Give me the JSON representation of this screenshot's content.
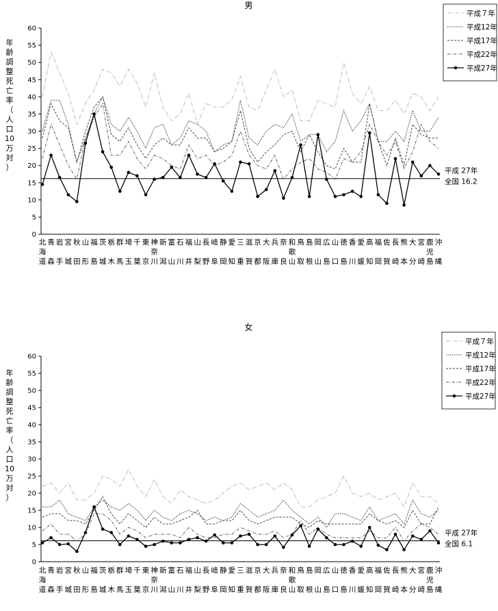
{
  "chart_data": [
    {
      "type": "line",
      "title": "男",
      "ylabel": "年齢調整死亡率（人口10万対）",
      "ylim": [
        0,
        60
      ],
      "yticks": [
        0,
        5,
        10,
        15,
        20,
        25,
        30,
        35,
        40,
        45,
        50,
        55,
        60
      ],
      "categories": [
        [
          "北",
          "海",
          "道"
        ],
        [
          "青",
          "",
          "森"
        ],
        [
          "岩",
          "",
          "手"
        ],
        [
          "宮",
          "",
          "城"
        ],
        [
          "秋",
          "",
          "田"
        ],
        [
          "山",
          "",
          "形"
        ],
        [
          "福",
          "",
          "島"
        ],
        [
          "茨",
          "",
          "城"
        ],
        [
          "栃",
          "",
          "木"
        ],
        [
          "群",
          "",
          "馬"
        ],
        [
          "埼",
          "",
          "玉"
        ],
        [
          "千",
          "",
          "葉"
        ],
        [
          "東",
          "",
          "京"
        ],
        [
          "神",
          "奈",
          "川"
        ],
        [
          "新",
          "",
          "潟"
        ],
        [
          "富",
          "",
          "山"
        ],
        [
          "石",
          "",
          "川"
        ],
        [
          "福",
          "",
          "井"
        ],
        [
          "山",
          "",
          "梨"
        ],
        [
          "長",
          "",
          "野"
        ],
        [
          "岐",
          "",
          "阜"
        ],
        [
          "静",
          "",
          "岡"
        ],
        [
          "愛",
          "",
          "知"
        ],
        [
          "三",
          "",
          "重"
        ],
        [
          "滋",
          "",
          "賀"
        ],
        [
          "京",
          "",
          "都"
        ],
        [
          "大",
          "",
          "阪"
        ],
        [
          "兵",
          "",
          "庫"
        ],
        [
          "奈",
          "",
          "良"
        ],
        [
          "和",
          "歌",
          "山"
        ],
        [
          "鳥",
          "",
          "取"
        ],
        [
          "島",
          "",
          "根"
        ],
        [
          "岡",
          "",
          "山"
        ],
        [
          "広",
          "",
          "島"
        ],
        [
          "山",
          "",
          "口"
        ],
        [
          "徳",
          "",
          "島"
        ],
        [
          "香",
          "",
          "川"
        ],
        [
          "愛",
          "",
          "媛"
        ],
        [
          "高",
          "",
          "知"
        ],
        [
          "福",
          "",
          "岡"
        ],
        [
          "佐",
          "",
          "賀"
        ],
        [
          "長",
          "",
          "崎"
        ],
        [
          "熊",
          "",
          "本"
        ],
        [
          "大",
          "",
          "分"
        ],
        [
          "宮",
          "",
          "崎"
        ],
        [
          "鹿",
          "児",
          "島"
        ],
        [
          "沖",
          "",
          "縄"
        ]
      ],
      "legend": [
        "平成７年",
        "平成12年",
        "平成17年",
        "平成22年",
        "平成27年"
      ],
      "legend_position": "top-right",
      "reference": {
        "value": 16.2,
        "label_line1": "平成 27年",
        "label_line2": "全国 16.2"
      },
      "series": [
        {
          "name": "平成７年",
          "values": [
            40,
            53,
            47,
            41,
            32,
            38,
            42,
            48,
            47,
            43,
            48,
            44,
            37,
            47,
            37,
            33,
            35,
            41,
            32,
            38,
            37,
            37,
            39,
            46,
            37,
            36,
            42,
            48,
            40,
            42,
            33,
            33,
            39,
            38,
            37,
            50,
            41,
            38,
            43,
            36,
            36,
            39,
            35,
            41,
            40,
            36,
            40
          ]
        },
        {
          "name": "平成12年",
          "values": [
            30,
            39,
            39,
            32,
            21,
            28,
            35,
            40,
            32,
            30,
            34,
            30,
            25,
            31,
            32,
            26,
            28,
            33,
            32,
            30,
            24,
            26,
            27,
            39,
            28,
            26,
            30,
            32,
            31,
            35,
            27,
            29,
            29,
            24,
            27,
            36,
            30,
            33,
            38,
            27,
            27,
            30,
            27,
            36,
            30,
            30,
            34
          ]
        },
        {
          "name": "平成17年",
          "values": [
            28,
            38,
            33,
            31,
            21,
            30,
            37,
            40,
            29,
            27,
            31,
            26,
            22,
            26,
            28,
            26,
            26,
            31,
            28,
            28,
            24,
            25,
            27,
            36,
            25,
            21,
            24,
            26,
            29,
            30,
            24,
            29,
            24,
            20,
            19,
            25,
            21,
            21,
            38,
            27,
            20,
            28,
            20,
            32,
            29,
            28,
            28
          ]
        },
        {
          "name": "平成22年",
          "values": [
            22,
            32,
            26,
            20,
            16,
            28,
            34,
            38,
            23,
            23,
            27,
            22,
            19,
            23,
            22,
            20,
            19,
            26,
            22,
            23,
            20,
            21,
            23,
            30,
            23,
            20,
            19,
            23,
            16,
            19,
            21,
            22,
            19,
            18,
            16,
            22,
            21,
            24,
            32,
            27,
            23,
            27,
            19,
            24,
            32,
            27,
            25
          ]
        },
        {
          "name": "平成27年",
          "values": [
            14.5,
            23,
            16.5,
            11.5,
            9.5,
            26.5,
            35,
            24,
            19.5,
            12.5,
            18,
            17,
            11.5,
            16,
            16.5,
            19.5,
            16.5,
            23,
            17.5,
            16.5,
            20.5,
            15.5,
            12.5,
            21,
            20.5,
            11,
            13,
            18.5,
            10.5,
            16.5,
            26,
            11,
            29,
            16,
            11,
            11.5,
            12.5,
            11,
            29.5,
            11.5,
            9,
            22,
            8.5,
            21,
            17,
            20,
            17.5
          ]
        }
      ]
    },
    {
      "type": "line",
      "title": "女",
      "ylabel": "年齢調整死亡率（人口10万対）",
      "ylim": [
        0,
        60
      ],
      "yticks": [
        0,
        5,
        10,
        15,
        20,
        25,
        30,
        35,
        40,
        45,
        50,
        55,
        60
      ],
      "categories": [
        [
          "北",
          "海",
          "道"
        ],
        [
          "青",
          "",
          "森"
        ],
        [
          "岩",
          "",
          "手"
        ],
        [
          "宮",
          "",
          "城"
        ],
        [
          "秋",
          "",
          "田"
        ],
        [
          "山",
          "",
          "形"
        ],
        [
          "福",
          "",
          "島"
        ],
        [
          "茨",
          "",
          "城"
        ],
        [
          "栃",
          "",
          "木"
        ],
        [
          "群",
          "",
          "馬"
        ],
        [
          "埼",
          "",
          "玉"
        ],
        [
          "千",
          "",
          "葉"
        ],
        [
          "東",
          "",
          "京"
        ],
        [
          "神",
          "奈",
          "川"
        ],
        [
          "新",
          "",
          "潟"
        ],
        [
          "富",
          "",
          "山"
        ],
        [
          "石",
          "",
          "川"
        ],
        [
          "福",
          "",
          "井"
        ],
        [
          "山",
          "",
          "梨"
        ],
        [
          "長",
          "",
          "野"
        ],
        [
          "岐",
          "",
          "阜"
        ],
        [
          "静",
          "",
          "岡"
        ],
        [
          "愛",
          "",
          "知"
        ],
        [
          "三",
          "",
          "重"
        ],
        [
          "滋",
          "",
          "賀"
        ],
        [
          "京",
          "",
          "都"
        ],
        [
          "大",
          "",
          "阪"
        ],
        [
          "兵",
          "",
          "庫"
        ],
        [
          "奈",
          "",
          "良"
        ],
        [
          "和",
          "歌",
          "山"
        ],
        [
          "鳥",
          "",
          "取"
        ],
        [
          "島",
          "",
          "根"
        ],
        [
          "岡",
          "",
          "山"
        ],
        [
          "広",
          "",
          "島"
        ],
        [
          "山",
          "",
          "口"
        ],
        [
          "徳",
          "",
          "島"
        ],
        [
          "香",
          "",
          "川"
        ],
        [
          "愛",
          "",
          "媛"
        ],
        [
          "高",
          "",
          "知"
        ],
        [
          "福",
          "",
          "岡"
        ],
        [
          "佐",
          "",
          "賀"
        ],
        [
          "長",
          "",
          "崎"
        ],
        [
          "熊",
          "",
          "本"
        ],
        [
          "大",
          "",
          "分"
        ],
        [
          "宮",
          "",
          "崎"
        ],
        [
          "鹿",
          "児",
          "島"
        ],
        [
          "沖",
          "",
          "縄"
        ]
      ],
      "legend": [
        "平成７年",
        "平成12年",
        "平成17年",
        "平成22年",
        "平成27年"
      ],
      "legend_position": "top-right",
      "reference": {
        "value": 6.1,
        "label_line1": "平成 27年",
        "label_line2": "全国 6.1"
      },
      "series": [
        {
          "name": "平成７年",
          "values": [
            22,
            23,
            20,
            23,
            18,
            18,
            20,
            25,
            24,
            22,
            27,
            22,
            19,
            24,
            19,
            17,
            21,
            19,
            18,
            17,
            18,
            20,
            22,
            23,
            21,
            22,
            23,
            21,
            23,
            21,
            16,
            16,
            18,
            19,
            20,
            25,
            20,
            19,
            20,
            18,
            19,
            20,
            16,
            23,
            19,
            19,
            17
          ]
        },
        {
          "name": "平成12年",
          "values": [
            16,
            16,
            18,
            14,
            13,
            12,
            16,
            18,
            16,
            15,
            17,
            15,
            12,
            15,
            13,
            12,
            14,
            15,
            14,
            12,
            13,
            12,
            13,
            17,
            15,
            13,
            14,
            15,
            18,
            15,
            13,
            11,
            13,
            10,
            14,
            14,
            13,
            12,
            16,
            12,
            13,
            14,
            11,
            18,
            14,
            13,
            15
          ]
        },
        {
          "name": "平成17年",
          "values": [
            13,
            14,
            14,
            12,
            12,
            11,
            15,
            19,
            14,
            11,
            14,
            12,
            10,
            13,
            11,
            11,
            12,
            13,
            15,
            11,
            11,
            12,
            12,
            15,
            12,
            11,
            12,
            13,
            13,
            13,
            11,
            10,
            12,
            11,
            11,
            11,
            11,
            11,
            14,
            12,
            11,
            12,
            10,
            15,
            11,
            11,
            16
          ]
        },
        {
          "name": "平成22年",
          "values": [
            9,
            11,
            8,
            8,
            6,
            8,
            14,
            14,
            12,
            8,
            10,
            9,
            7,
            8,
            8,
            8,
            7,
            10,
            8,
            7,
            7,
            8,
            8,
            10,
            9,
            8,
            8,
            9,
            7,
            8,
            12,
            8,
            10,
            8,
            7,
            7,
            7,
            7,
            9,
            7,
            7,
            10,
            6,
            9,
            11,
            10,
            8
          ]
        },
        {
          "name": "平成27年",
          "values": [
            5.5,
            7,
            5,
            5.2,
            3,
            8.5,
            16,
            9.5,
            8.5,
            5,
            7.5,
            6.5,
            4.5,
            5,
            6,
            5.5,
            5.5,
            6.5,
            7,
            6,
            7.8,
            5.5,
            5.5,
            7.5,
            8,
            5,
            5,
            7.5,
            4.2,
            7.8,
            10.5,
            4.5,
            9.5,
            7,
            5,
            5,
            6,
            4.5,
            10,
            4.8,
            3.5,
            8,
            3.5,
            7.5,
            6.5,
            9,
            5.5
          ]
        }
      ]
    }
  ]
}
